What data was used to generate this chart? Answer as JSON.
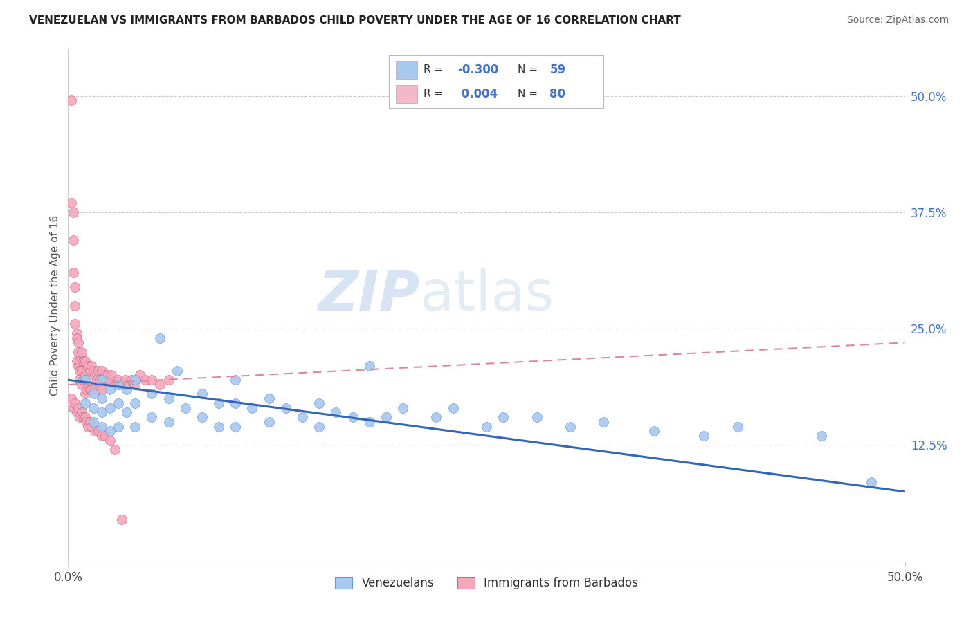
{
  "title": "VENEZUELAN VS IMMIGRANTS FROM BARBADOS CHILD POVERTY UNDER THE AGE OF 16 CORRELATION CHART",
  "source": "Source: ZipAtlas.com",
  "ylabel": "Child Poverty Under the Age of 16",
  "ytick_values": [
    0.125,
    0.25,
    0.375,
    0.5
  ],
  "ytick_labels": [
    "12.5%",
    "25.0%",
    "37.5%",
    "50.0%"
  ],
  "xrange": [
    0.0,
    0.5
  ],
  "yrange": [
    0.0,
    0.55
  ],
  "watermark_text": "ZIPatlas",
  "series": [
    {
      "name": "Venezuelans",
      "color": "#a8c8f0",
      "edge_color": "#6699cc",
      "line_color": "#3366bb",
      "trend_y_start": 0.195,
      "trend_y_end": 0.075
    },
    {
      "name": "Immigrants from Barbados",
      "color": "#f4a8bc",
      "edge_color": "#cc6688",
      "line_color": "#dd8899",
      "trend_y_start": 0.19,
      "trend_y_end": 0.235
    }
  ],
  "legend_r1": "-0.300",
  "legend_n1": "59",
  "legend_r2": "0.004",
  "legend_n2": "80",
  "venezuelan_x": [
    0.01,
    0.01,
    0.015,
    0.015,
    0.015,
    0.02,
    0.02,
    0.02,
    0.02,
    0.025,
    0.025,
    0.025,
    0.03,
    0.03,
    0.03,
    0.035,
    0.035,
    0.04,
    0.04,
    0.04,
    0.05,
    0.05,
    0.055,
    0.06,
    0.06,
    0.065,
    0.07,
    0.08,
    0.08,
    0.09,
    0.09,
    0.1,
    0.1,
    0.1,
    0.11,
    0.12,
    0.12,
    0.13,
    0.14,
    0.15,
    0.15,
    0.16,
    0.17,
    0.18,
    0.18,
    0.19,
    0.2,
    0.22,
    0.23,
    0.25,
    0.26,
    0.28,
    0.3,
    0.32,
    0.35,
    0.38,
    0.4,
    0.45,
    0.48
  ],
  "venezuelan_y": [
    0.195,
    0.17,
    0.18,
    0.165,
    0.15,
    0.195,
    0.175,
    0.16,
    0.145,
    0.185,
    0.165,
    0.14,
    0.19,
    0.17,
    0.145,
    0.185,
    0.16,
    0.195,
    0.17,
    0.145,
    0.18,
    0.155,
    0.24,
    0.175,
    0.15,
    0.205,
    0.165,
    0.18,
    0.155,
    0.17,
    0.145,
    0.195,
    0.17,
    0.145,
    0.165,
    0.175,
    0.15,
    0.165,
    0.155,
    0.17,
    0.145,
    0.16,
    0.155,
    0.21,
    0.15,
    0.155,
    0.165,
    0.155,
    0.165,
    0.145,
    0.155,
    0.155,
    0.145,
    0.15,
    0.14,
    0.135,
    0.145,
    0.135,
    0.085
  ],
  "barbados_x": [
    0.002,
    0.002,
    0.003,
    0.003,
    0.003,
    0.004,
    0.004,
    0.004,
    0.005,
    0.005,
    0.005,
    0.006,
    0.006,
    0.006,
    0.007,
    0.007,
    0.007,
    0.008,
    0.008,
    0.008,
    0.009,
    0.009,
    0.01,
    0.01,
    0.01,
    0.011,
    0.011,
    0.012,
    0.012,
    0.013,
    0.013,
    0.014,
    0.014,
    0.015,
    0.015,
    0.016,
    0.017,
    0.018,
    0.018,
    0.019,
    0.02,
    0.02,
    0.021,
    0.022,
    0.023,
    0.024,
    0.025,
    0.026,
    0.028,
    0.03,
    0.032,
    0.034,
    0.036,
    0.038,
    0.04,
    0.043,
    0.046,
    0.05,
    0.055,
    0.06,
    0.002,
    0.003,
    0.004,
    0.005,
    0.006,
    0.007,
    0.008,
    0.009,
    0.01,
    0.011,
    0.012,
    0.013,
    0.014,
    0.016,
    0.018,
    0.02,
    0.022,
    0.025,
    0.028,
    0.032
  ],
  "barbados_y": [
    0.495,
    0.385,
    0.375,
    0.345,
    0.31,
    0.295,
    0.275,
    0.255,
    0.245,
    0.24,
    0.215,
    0.235,
    0.21,
    0.225,
    0.215,
    0.205,
    0.195,
    0.225,
    0.205,
    0.19,
    0.215,
    0.195,
    0.215,
    0.2,
    0.18,
    0.205,
    0.185,
    0.21,
    0.19,
    0.205,
    0.185,
    0.21,
    0.185,
    0.205,
    0.185,
    0.2,
    0.195,
    0.205,
    0.185,
    0.195,
    0.205,
    0.185,
    0.195,
    0.2,
    0.195,
    0.2,
    0.195,
    0.2,
    0.19,
    0.195,
    0.19,
    0.195,
    0.19,
    0.195,
    0.19,
    0.2,
    0.195,
    0.195,
    0.19,
    0.195,
    0.175,
    0.165,
    0.17,
    0.16,
    0.165,
    0.155,
    0.16,
    0.155,
    0.155,
    0.15,
    0.145,
    0.15,
    0.145,
    0.14,
    0.14,
    0.135,
    0.135,
    0.13,
    0.12,
    0.045
  ]
}
